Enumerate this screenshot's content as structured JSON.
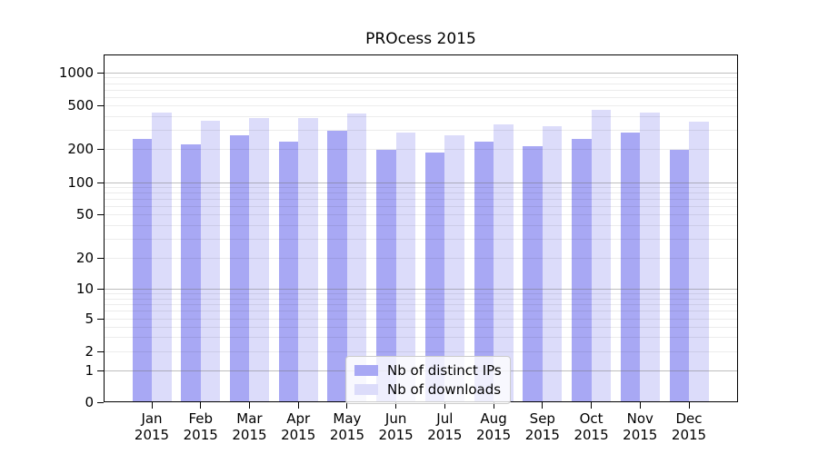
{
  "title": "PROcess 2015",
  "colors": {
    "ips_bar": "#a8a8f4",
    "downloads_bar": "#dcdcfa",
    "grid_major": "#6e6e6e",
    "grid_minor": "#e8e8e8",
    "axis": "#000000",
    "legend_border": "#cccccc"
  },
  "legend": {
    "items": [
      {
        "label": "Nb of distinct IPs",
        "color": "#a8a8f4"
      },
      {
        "label": "Nb of downloads",
        "color": "#dcdcfa"
      }
    ]
  },
  "y_axis": {
    "ticks": [
      0,
      1,
      2,
      5,
      10,
      20,
      50,
      100,
      200,
      500,
      1000
    ]
  },
  "x_axis": {
    "labels": [
      {
        "month": "Jan",
        "year": "2015"
      },
      {
        "month": "Feb",
        "year": "2015"
      },
      {
        "month": "Mar",
        "year": "2015"
      },
      {
        "month": "Apr",
        "year": "2015"
      },
      {
        "month": "May",
        "year": "2015"
      },
      {
        "month": "Jun",
        "year": "2015"
      },
      {
        "month": "Jul",
        "year": "2015"
      },
      {
        "month": "Aug",
        "year": "2015"
      },
      {
        "month": "Sep",
        "year": "2015"
      },
      {
        "month": "Oct",
        "year": "2015"
      },
      {
        "month": "Nov",
        "year": "2015"
      },
      {
        "month": "Dec",
        "year": "2015"
      }
    ]
  },
  "chart_data": {
    "type": "bar",
    "title": "PROcess 2015",
    "scale": "log (symlog: linear 0-1, log above)",
    "grid": "on",
    "legend_position": "lower center",
    "xlabel": "",
    "ylabel": "",
    "ylim": [
      0,
      1400
    ],
    "yticks": [
      0,
      1,
      2,
      5,
      10,
      20,
      50,
      100,
      200,
      500,
      1000
    ],
    "categories": [
      "Jan 2015",
      "Feb 2015",
      "Mar 2015",
      "Apr 2015",
      "May 2015",
      "Jun 2015",
      "Jul 2015",
      "Aug 2015",
      "Sep 2015",
      "Oct 2015",
      "Nov 2015",
      "Dec 2015"
    ],
    "series": [
      {
        "name": "Nb of distinct IPs",
        "color": "#a8a8f4",
        "values": [
          245,
          222,
          266,
          234,
          292,
          197,
          185,
          232,
          212,
          246,
          282,
          195
        ]
      },
      {
        "name": "Nb of downloads",
        "color": "#dcdcfa",
        "values": [
          430,
          360,
          385,
          380,
          425,
          281,
          265,
          333,
          322,
          455,
          430,
          355
        ]
      }
    ]
  }
}
